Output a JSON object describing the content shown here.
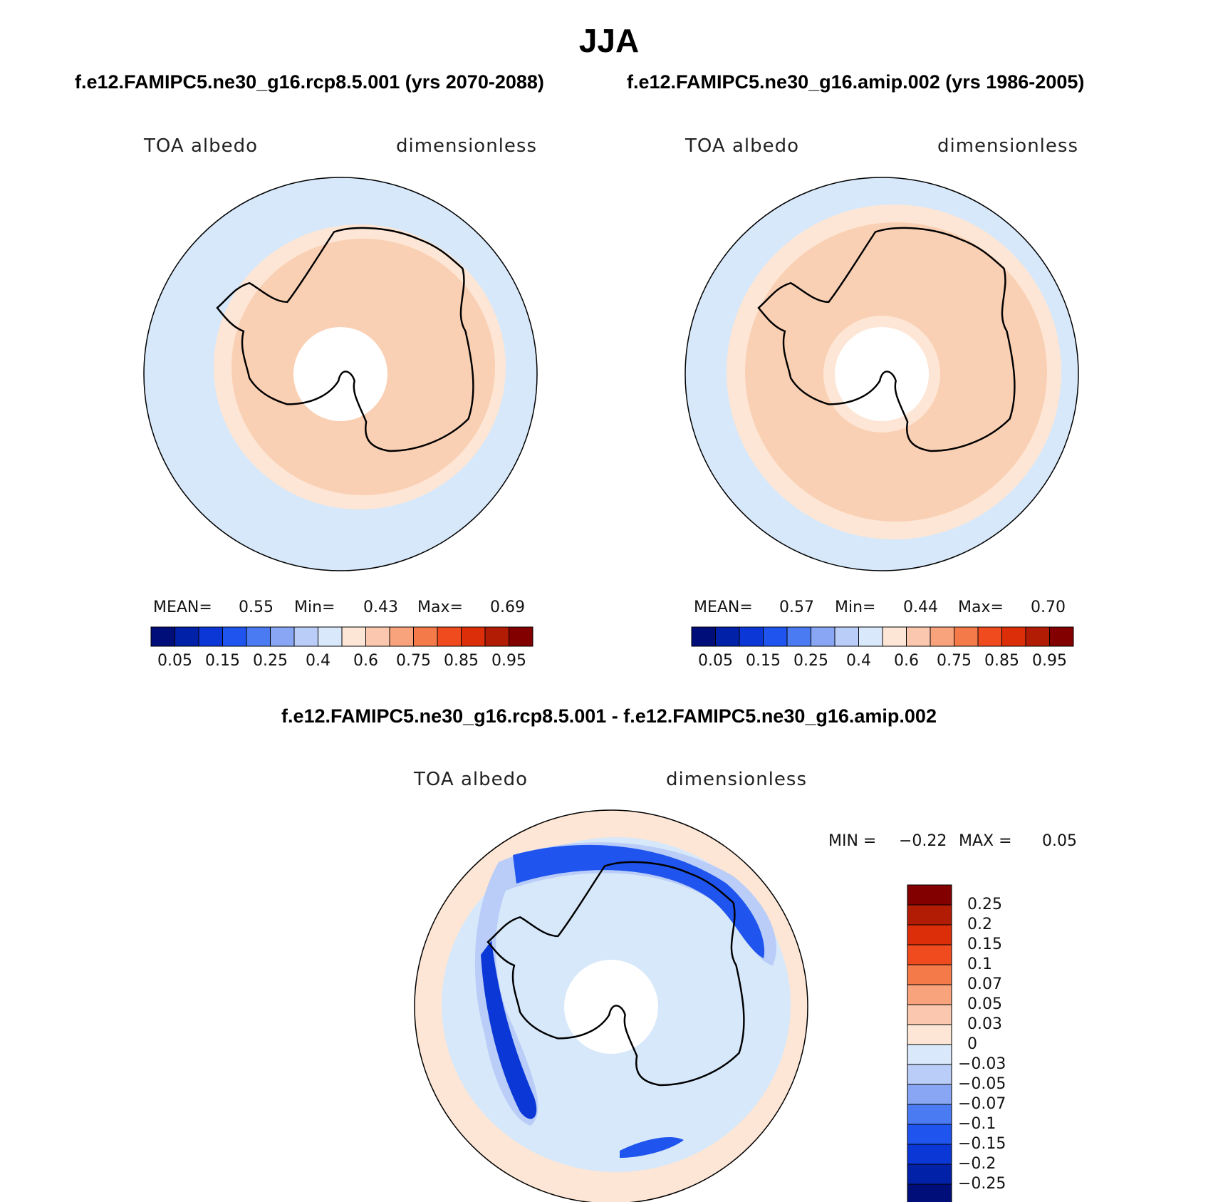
{
  "title": "JJA",
  "panels": [
    {
      "case": "f.e12.FAMIPC5.ne30_g16.rcp8.5.001 (yrs 2070-2088)",
      "variable": "TOA albedo",
      "units": "dimensionless",
      "stats": {
        "mean_label": "MEAN=",
        "mean": "0.55",
        "min_label": "Min=",
        "min": "0.43",
        "max_label": "Max=",
        "max": "0.69"
      }
    },
    {
      "case": "f.e12.FAMIPC5.ne30_g16.amip.002 (yrs 1986-2005)",
      "variable": "TOA albedo",
      "units": "dimensionless",
      "stats": {
        "mean_label": "MEAN=",
        "mean": "0.57",
        "min_label": "Min=",
        "min": "0.44",
        "max_label": "Max=",
        "max": "0.70"
      }
    }
  ],
  "difference": {
    "title": "f.e12.FAMIPC5.ne30_g16.rcp8.5.001 - f.e12.FAMIPC5.ne30_g16.amip.002",
    "variable": "TOA albedo",
    "units": "dimensionless",
    "min_label": "MIN =",
    "min": "−0.22",
    "max_label": "MAX =",
    "max": "0.05"
  },
  "colorbar_abs": {
    "ticks": [
      "0.05",
      "0.15",
      "0.25",
      "0.4",
      "0.6",
      "0.75",
      "0.85",
      "0.95"
    ],
    "colors": [
      "#000e7a",
      "#0021a8",
      "#0a37d6",
      "#1f55ee",
      "#4a7bf2",
      "#88a6f4",
      "#b9cdf8",
      "#d9e9fb",
      "#fde6d5",
      "#fbc7ae",
      "#f9a37c",
      "#f57a4a",
      "#f04b1e",
      "#dc2e08",
      "#b21c05",
      "#820000"
    ]
  },
  "colorbar_diff": {
    "ticks": [
      "0.25",
      "0.2",
      "0.15",
      "0.1",
      "0.07",
      "0.05",
      "0.03",
      "0",
      "−0.03",
      "−0.05",
      "−0.07",
      "−0.1",
      "−0.15",
      "−0.2",
      "−0.25"
    ],
    "colors": [
      "#820000",
      "#b21c05",
      "#dc2e08",
      "#f04b1e",
      "#f57a4a",
      "#f9a37c",
      "#fbc7ae",
      "#fde6d5",
      "#d9e9fb",
      "#b9cdf8",
      "#88a6f4",
      "#4a7bf2",
      "#1f55ee",
      "#0a37d6",
      "#0021a8",
      "#000e7a"
    ]
  },
  "map_colors": {
    "ocean_light_blue": "#d6e8fa",
    "ice_peach": "#fad0b4",
    "ring_cream": "#fde6d5",
    "diff_blue_mid": "#b9cdf8",
    "diff_blue_dark": "#1f55ee",
    "diff_blue_deep": "#0a37d6"
  }
}
